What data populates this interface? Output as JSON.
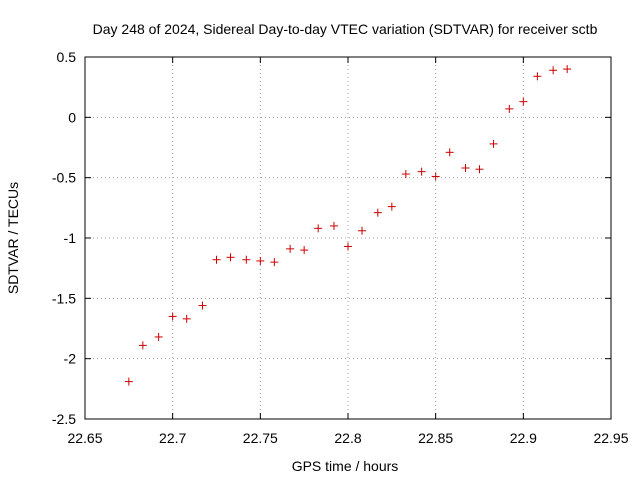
{
  "chart_data": {
    "type": "scatter",
    "title": "Day 248 of 2024, Sidereal Day-to-day VTEC variation (SDTVAR) for receiver sctb",
    "xlabel": "GPS time / hours",
    "ylabel": "SDTVAR / TECUs",
    "xlim": [
      22.65,
      22.95
    ],
    "ylim": [
      -2.5,
      0.5
    ],
    "xticks": [
      22.65,
      22.7,
      22.75,
      22.8,
      22.85,
      22.9,
      22.95
    ],
    "xtick_labels": [
      "22.65",
      "22.7",
      "22.75",
      "22.8",
      "22.85",
      "22.9",
      "22.95"
    ],
    "yticks": [
      -2.5,
      -2,
      -1.5,
      -1,
      -0.5,
      0,
      0.5
    ],
    "ytick_labels": [
      "-2.5",
      "-2",
      "-1.5",
      "-1",
      "-0.5",
      "0",
      "0.5"
    ],
    "grid": true,
    "marker": "+",
    "color": "#cc0000",
    "series": [
      {
        "name": "sctb",
        "x": [
          22.675,
          22.683,
          22.692,
          22.7,
          22.708,
          22.717,
          22.725,
          22.733,
          22.742,
          22.75,
          22.758,
          22.767,
          22.775,
          22.783,
          22.792,
          22.8,
          22.808,
          22.817,
          22.825,
          22.833,
          22.842,
          22.85,
          22.858,
          22.867,
          22.875,
          22.883,
          22.892,
          22.9,
          22.908,
          22.917,
          22.925
        ],
        "y": [
          -2.19,
          -1.89,
          -1.82,
          -1.65,
          -1.67,
          -1.56,
          -1.18,
          -1.16,
          -1.18,
          -1.19,
          -1.2,
          -1.09,
          -1.1,
          -0.92,
          -0.9,
          -1.07,
          -0.94,
          -0.79,
          -0.74,
          -0.47,
          -0.45,
          -0.49,
          -0.29,
          -0.42,
          -0.43,
          -0.22,
          0.07,
          0.13,
          0.34,
          0.39,
          0.4
        ]
      }
    ]
  }
}
